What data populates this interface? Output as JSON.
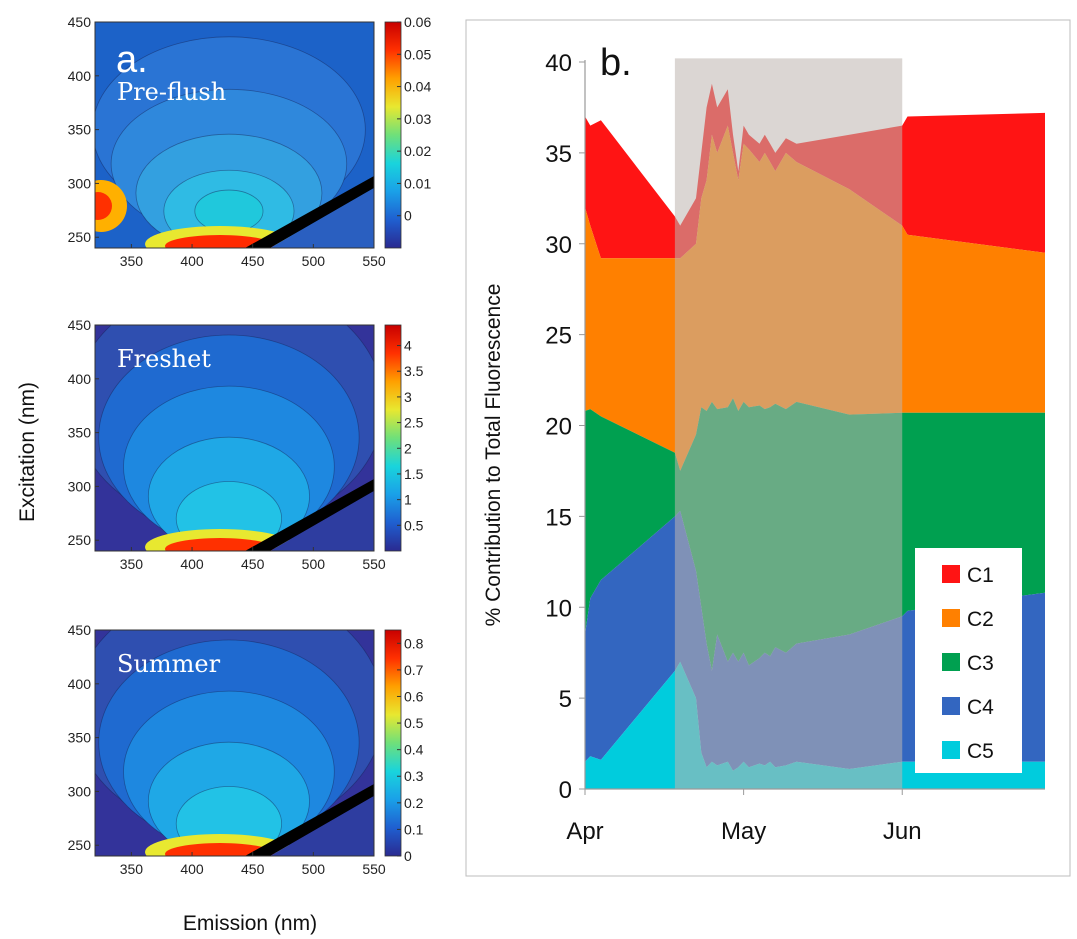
{
  "figure": {
    "panel_a_label": "a.",
    "panel_b_label": "b.",
    "shared_ylabel": "Excitation (nm)",
    "shared_xlabel": "Emission (nm)"
  },
  "chart_data": [
    {
      "type": "heatmap",
      "title": "Pre-flush",
      "x_ticks": [
        "350",
        "400",
        "450",
        "500",
        "550"
      ],
      "y_ticks": [
        "450",
        "400",
        "350",
        "300",
        "250"
      ],
      "xlim": [
        320,
        550
      ],
      "ylim": [
        240,
        450
      ],
      "colorbar_ticks": [
        "0.06",
        "0.05",
        "0.04",
        "0.03",
        "0.02",
        "0.01",
        "0"
      ],
      "colorbar_range": [
        -0.01,
        0.06
      ],
      "background_color": "#1c62c8"
    },
    {
      "type": "heatmap",
      "title": "Freshet",
      "x_ticks": [
        "350",
        "400",
        "450",
        "500",
        "550"
      ],
      "y_ticks": [
        "450",
        "400",
        "350",
        "300",
        "250"
      ],
      "xlim": [
        320,
        550
      ],
      "ylim": [
        240,
        450
      ],
      "colorbar_ticks": [
        "4",
        "3.5",
        "3",
        "2.5",
        "2",
        "1.5",
        "1",
        "0.5"
      ],
      "colorbar_range": [
        0,
        4.4
      ],
      "background_color": "#33339a"
    },
    {
      "type": "heatmap",
      "title": "Summer",
      "x_ticks": [
        "350",
        "400",
        "450",
        "500",
        "550"
      ],
      "y_ticks": [
        "450",
        "400",
        "350",
        "300",
        "250"
      ],
      "xlim": [
        320,
        550
      ],
      "ylim": [
        240,
        450
      ],
      "colorbar_ticks": [
        "0.8",
        "0.7",
        "0.6",
        "0.5",
        "0.4",
        "0.3",
        "0.2",
        "0.1",
        "0"
      ],
      "colorbar_range": [
        0,
        0.85
      ],
      "background_color": "#33339a"
    },
    {
      "type": "area",
      "ylabel": "% Contribution to Total Fluorescence",
      "xlabel": "",
      "x_tick_labels": [
        "Apr",
        "May",
        "Jun"
      ],
      "x_tick_days": [
        0,
        30,
        60
      ],
      "y_ticks": [
        0,
        5,
        10,
        15,
        20,
        25,
        30,
        35,
        40
      ],
      "ylim": [
        0,
        40
      ],
      "xlim": [
        0,
        87
      ],
      "shaded_period": [
        17,
        60
      ],
      "legend": [
        "C1",
        "C2",
        "C3",
        "C4",
        "C5"
      ],
      "legend_position": "bottom-right",
      "x": [
        0,
        1,
        3,
        17,
        18,
        21,
        22,
        23,
        24,
        25,
        27,
        28,
        29,
        30,
        31,
        33,
        34,
        35,
        36,
        38,
        40,
        50,
        60,
        61,
        87
      ],
      "series": [
        {
          "name": "C1",
          "color": "#ff1414",
          "values": [
            37.0,
            36.5,
            36.8,
            31.5,
            31.0,
            32.5,
            35.0,
            37.5,
            38.8,
            37.5,
            38.5,
            36.0,
            34.0,
            36.5,
            36.0,
            35.5,
            36.0,
            35.5,
            35.0,
            35.8,
            35.5,
            36.0,
            36.5,
            37.0,
            37.2
          ]
        },
        {
          "name": "C2",
          "color": "#ff8000",
          "values": [
            32.0,
            31.0,
            29.2,
            29.2,
            29.2,
            30.0,
            32.5,
            33.5,
            36.0,
            35.0,
            36.5,
            35.0,
            33.5,
            35.5,
            35.2,
            34.5,
            35.0,
            34.5,
            34.0,
            35.0,
            34.5,
            33.0,
            31.0,
            30.5,
            29.5
          ]
        },
        {
          "name": "C3",
          "color": "#00a050",
          "values": [
            20.8,
            20.9,
            20.5,
            18.5,
            17.5,
            19.5,
            21.0,
            20.8,
            21.3,
            20.9,
            21.0,
            21.5,
            20.8,
            21.3,
            21.0,
            21.1,
            20.9,
            21.0,
            21.2,
            20.9,
            21.3,
            20.6,
            20.7,
            20.7,
            20.7
          ]
        },
        {
          "name": "C4",
          "color": "#3366c0",
          "values": [
            8.5,
            10.5,
            11.5,
            15.0,
            15.3,
            12.0,
            10.0,
            8.0,
            6.5,
            8.5,
            7.0,
            7.5,
            7.0,
            7.5,
            6.8,
            7.2,
            7.5,
            7.3,
            7.8,
            7.5,
            8.0,
            8.5,
            9.5,
            9.8,
            10.8
          ]
        },
        {
          "name": "C5",
          "color": "#00ccdd",
          "values": [
            1.5,
            1.8,
            1.6,
            6.5,
            7.0,
            5.0,
            2.0,
            1.2,
            1.5,
            1.3,
            1.5,
            1.0,
            1.2,
            1.5,
            1.2,
            1.4,
            1.3,
            1.5,
            1.2,
            1.3,
            1.5,
            1.1,
            1.5,
            1.5,
            1.5
          ]
        }
      ]
    }
  ]
}
